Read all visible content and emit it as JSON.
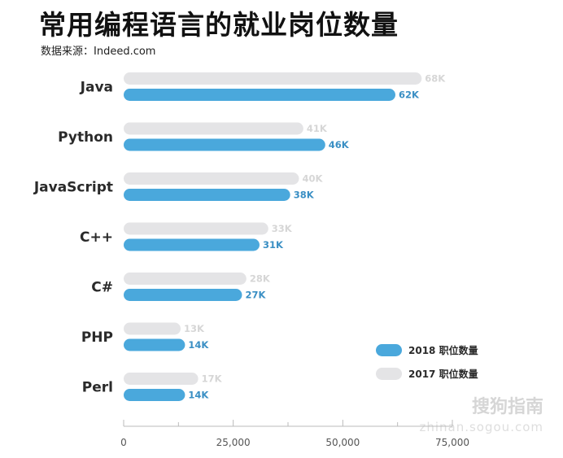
{
  "header": {
    "title": "常用编程语言的就业岗位数量",
    "source": "数据来源：Indeed.com"
  },
  "watermark": {
    "brand": "搜狗指南",
    "url": "zhinan.sogou.com"
  },
  "colors": {
    "series_2018": "#4aa8dc",
    "series_2017": "#e4e4e6",
    "axis": "#bbbbbb"
  },
  "chart_data": {
    "type": "bar",
    "orientation": "horizontal",
    "categories": [
      "Java",
      "Python",
      "JavaScript",
      "C++",
      "C#",
      "PHP",
      "Perl"
    ],
    "series": [
      {
        "name": "2017 职位数量",
        "values": [
          68000,
          41000,
          40000,
          33000,
          28000,
          13000,
          17000
        ],
        "labels": [
          "68K",
          "41K",
          "40K",
          "33K",
          "28K",
          "13K",
          "17K"
        ]
      },
      {
        "name": "2018 职位数量",
        "values": [
          62000,
          46000,
          38000,
          31000,
          27000,
          14000,
          14000
        ],
        "labels": [
          "62K",
          "46K",
          "38K",
          "31K",
          "27K",
          "14K",
          "14K"
        ]
      }
    ],
    "xlim": [
      0,
      75000
    ],
    "xticks": [
      0,
      25000,
      50000,
      75000
    ],
    "xtick_labels": [
      "0",
      "25,000",
      "50,000",
      "75,000"
    ],
    "grid": false,
    "legend_position": "bottom-right",
    "legend": [
      "2018 职位数量",
      "2017 职位数量"
    ]
  }
}
